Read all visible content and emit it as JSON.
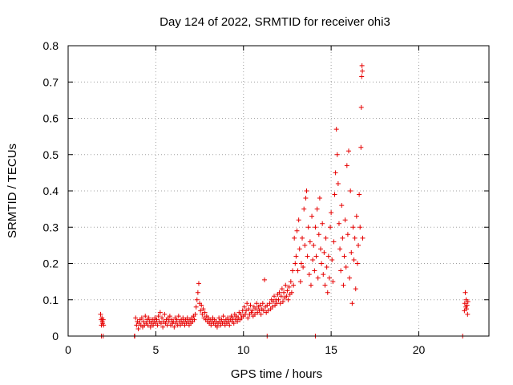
{
  "chart_data": {
    "type": "scatter",
    "title": "Day 124 of 2022, SRMTID for receiver ohi3",
    "xlabel": "GPS time / hours",
    "ylabel": "SRMTID / TECUs",
    "xlim": [
      0,
      24
    ],
    "ylim": [
      0,
      0.8
    ],
    "xticks": [
      0,
      5,
      10,
      15,
      20
    ],
    "yticks": [
      0,
      0.1,
      0.2,
      0.3,
      0.4,
      0.5,
      0.6,
      0.7,
      0.8
    ],
    "grid": true,
    "legend": "none",
    "marker": "+",
    "colors": {
      "points": "#e60000",
      "grid": "#a0a0a0",
      "frame": "#000000"
    },
    "series": [
      {
        "name": "SRMTID",
        "points": [
          [
            1.85,
            0.06
          ],
          [
            1.88,
            0.045
          ],
          [
            1.9,
            0.03
          ],
          [
            1.93,
            0.05
          ],
          [
            1.95,
            0.04
          ],
          [
            1.97,
            0.035
          ],
          [
            2.0,
            0.045
          ],
          [
            2.02,
            0.03
          ],
          [
            1.9,
            0.0
          ],
          [
            2.0,
            0.0
          ],
          [
            3.78,
            0.0
          ],
          [
            3.8,
            0.0
          ],
          [
            3.85,
            0.05
          ],
          [
            3.9,
            0.03
          ],
          [
            3.95,
            0.04
          ],
          [
            4.0,
            0.02
          ],
          [
            4.05,
            0.035
          ],
          [
            4.1,
            0.045
          ],
          [
            4.15,
            0.03
          ],
          [
            4.2,
            0.05
          ],
          [
            4.25,
            0.025
          ],
          [
            4.3,
            0.04
          ],
          [
            4.35,
            0.03
          ],
          [
            4.4,
            0.055
          ],
          [
            4.45,
            0.035
          ],
          [
            4.5,
            0.045
          ],
          [
            4.55,
            0.03
          ],
          [
            4.6,
            0.05
          ],
          [
            4.65,
            0.04
          ],
          [
            4.7,
            0.025
          ],
          [
            4.75,
            0.035
          ],
          [
            4.8,
            0.045
          ],
          [
            4.85,
            0.03
          ],
          [
            4.9,
            0.04
          ],
          [
            4.95,
            0.05
          ],
          [
            5.0,
            0.035
          ],
          [
            5.05,
            0.045
          ],
          [
            5.1,
            0.03
          ],
          [
            5.15,
            0.055
          ],
          [
            5.2,
            0.04
          ],
          [
            5.25,
            0.065
          ],
          [
            5.3,
            0.035
          ],
          [
            5.35,
            0.05
          ],
          [
            5.4,
            0.025
          ],
          [
            5.45,
            0.04
          ],
          [
            5.5,
            0.06
          ],
          [
            5.55,
            0.035
          ],
          [
            5.6,
            0.045
          ],
          [
            5.65,
            0.03
          ],
          [
            5.7,
            0.05
          ],
          [
            5.75,
            0.04
          ],
          [
            5.8,
            0.055
          ],
          [
            5.85,
            0.03
          ],
          [
            5.9,
            0.045
          ],
          [
            5.95,
            0.035
          ],
          [
            6.0,
            0.04
          ],
          [
            6.05,
            0.025
          ],
          [
            6.1,
            0.05
          ],
          [
            6.15,
            0.035
          ],
          [
            6.2,
            0.045
          ],
          [
            6.25,
            0.03
          ],
          [
            6.3,
            0.055
          ],
          [
            6.35,
            0.04
          ],
          [
            6.4,
            0.03
          ],
          [
            6.45,
            0.045
          ],
          [
            6.5,
            0.035
          ],
          [
            6.55,
            0.05
          ],
          [
            6.6,
            0.04
          ],
          [
            6.65,
            0.03
          ],
          [
            6.7,
            0.045
          ],
          [
            6.75,
            0.035
          ],
          [
            6.8,
            0.05
          ],
          [
            6.85,
            0.04
          ],
          [
            6.9,
            0.03
          ],
          [
            6.95,
            0.045
          ],
          [
            7.0,
            0.035
          ],
          [
            7.05,
            0.05
          ],
          [
            7.1,
            0.04
          ],
          [
            7.15,
            0.055
          ],
          [
            7.2,
            0.045
          ],
          [
            7.25,
            0.06
          ],
          [
            7.3,
            0.08
          ],
          [
            7.35,
            0.1
          ],
          [
            7.4,
            0.12
          ],
          [
            7.45,
            0.145
          ],
          [
            7.5,
            0.09
          ],
          [
            7.55,
            0.07
          ],
          [
            7.6,
            0.085
          ],
          [
            7.65,
            0.06
          ],
          [
            7.7,
            0.075
          ],
          [
            7.75,
            0.05
          ],
          [
            7.8,
            0.065
          ],
          [
            7.85,
            0.045
          ],
          [
            7.9,
            0.055
          ],
          [
            7.95,
            0.04
          ],
          [
            8.0,
            0.05
          ],
          [
            8.05,
            0.035
          ],
          [
            8.1,
            0.045
          ],
          [
            8.15,
            0.03
          ],
          [
            8.2,
            0.04
          ],
          [
            8.25,
            0.05
          ],
          [
            8.3,
            0.035
          ],
          [
            8.35,
            0.045
          ],
          [
            8.4,
            0.03
          ],
          [
            8.45,
            0.04
          ],
          [
            8.5,
            0.025
          ],
          [
            8.55,
            0.035
          ],
          [
            8.6,
            0.05
          ],
          [
            8.65,
            0.04
          ],
          [
            8.7,
            0.03
          ],
          [
            8.75,
            0.045
          ],
          [
            8.8,
            0.035
          ],
          [
            8.85,
            0.055
          ],
          [
            8.9,
            0.04
          ],
          [
            8.95,
            0.03
          ],
          [
            9.0,
            0.045
          ],
          [
            9.05,
            0.035
          ],
          [
            9.1,
            0.05
          ],
          [
            9.15,
            0.04
          ],
          [
            9.2,
            0.03
          ],
          [
            9.25,
            0.045
          ],
          [
            9.3,
            0.055
          ],
          [
            9.35,
            0.04
          ],
          [
            9.4,
            0.05
          ],
          [
            9.45,
            0.035
          ],
          [
            9.5,
            0.06
          ],
          [
            9.55,
            0.045
          ],
          [
            9.6,
            0.055
          ],
          [
            9.65,
            0.04
          ],
          [
            9.7,
            0.05
          ],
          [
            9.75,
            0.065
          ],
          [
            9.8,
            0.045
          ],
          [
            9.85,
            0.06
          ],
          [
            9.9,
            0.05
          ],
          [
            9.95,
            0.07
          ],
          [
            10.0,
            0.055
          ],
          [
            10.05,
            0.08
          ],
          [
            10.1,
            0.06
          ],
          [
            10.15,
            0.07
          ],
          [
            10.2,
            0.09
          ],
          [
            10.25,
            0.05
          ],
          [
            10.3,
            0.075
          ],
          [
            10.35,
            0.06
          ],
          [
            10.4,
            0.085
          ],
          [
            10.45,
            0.065
          ],
          [
            10.5,
            0.07
          ],
          [
            10.55,
            0.055
          ],
          [
            10.6,
            0.08
          ],
          [
            10.65,
            0.06
          ],
          [
            10.7,
            0.075
          ],
          [
            10.75,
            0.09
          ],
          [
            10.8,
            0.065
          ],
          [
            10.85,
            0.08
          ],
          [
            10.9,
            0.07
          ],
          [
            10.95,
            0.085
          ],
          [
            11.0,
            0.06
          ],
          [
            11.05,
            0.075
          ],
          [
            11.1,
            0.09
          ],
          [
            11.15,
            0.07
          ],
          [
            11.2,
            0.155
          ],
          [
            11.25,
            0.08
          ],
          [
            11.3,
            0.065
          ],
          [
            11.35,
            0.085
          ],
          [
            11.4,
            0.07
          ],
          [
            11.5,
            0.09
          ],
          [
            11.55,
            0.075
          ],
          [
            11.6,
            0.1
          ],
          [
            11.65,
            0.08
          ],
          [
            11.7,
            0.095
          ],
          [
            11.75,
            0.11
          ],
          [
            11.8,
            0.085
          ],
          [
            11.85,
            0.1
          ],
          [
            11.9,
            0.09
          ],
          [
            11.95,
            0.115
          ],
          [
            12.0,
            0.1
          ],
          [
            12.05,
            0.12
          ],
          [
            12.1,
            0.09
          ],
          [
            12.15,
            0.11
          ],
          [
            12.2,
            0.13
          ],
          [
            12.25,
            0.095
          ],
          [
            12.3,
            0.12
          ],
          [
            12.35,
            0.105
          ],
          [
            12.4,
            0.14
          ],
          [
            12.45,
            0.11
          ],
          [
            12.5,
            0.125
          ],
          [
            12.55,
            0.1
          ],
          [
            12.6,
            0.135
          ],
          [
            12.65,
            0.115
          ],
          [
            12.7,
            0.15
          ],
          [
            12.75,
            0.12
          ],
          [
            12.8,
            0.18
          ],
          [
            12.85,
            0.14
          ],
          [
            12.9,
            0.27
          ],
          [
            12.95,
            0.2
          ],
          [
            13.0,
            0.22
          ],
          [
            13.05,
            0.29
          ],
          [
            13.1,
            0.18
          ],
          [
            13.15,
            0.32
          ],
          [
            13.2,
            0.24
          ],
          [
            13.25,
            0.15
          ],
          [
            13.3,
            0.2
          ],
          [
            13.35,
            0.27
          ],
          [
            13.4,
            0.19
          ],
          [
            13.45,
            0.35
          ],
          [
            13.5,
            0.25
          ],
          [
            13.55,
            0.38
          ],
          [
            13.6,
            0.4
          ],
          [
            13.65,
            0.22
          ],
          [
            13.7,
            0.3
          ],
          [
            13.75,
            0.17
          ],
          [
            13.8,
            0.26
          ],
          [
            13.85,
            0.14
          ],
          [
            13.9,
            0.33
          ],
          [
            13.95,
            0.21
          ],
          [
            14.0,
            0.25
          ],
          [
            14.05,
            0.18
          ],
          [
            14.1,
            0.3
          ],
          [
            14.15,
            0.22
          ],
          [
            14.2,
            0.35
          ],
          [
            14.25,
            0.16
          ],
          [
            14.3,
            0.28
          ],
          [
            14.35,
            0.38
          ],
          [
            14.4,
            0.24
          ],
          [
            14.45,
            0.2
          ],
          [
            14.5,
            0.31
          ],
          [
            14.55,
            0.17
          ],
          [
            14.6,
            0.23
          ],
          [
            14.65,
            0.14
          ],
          [
            14.7,
            0.27
          ],
          [
            14.75,
            0.19
          ],
          [
            14.8,
            0.12
          ],
          [
            14.85,
            0.22
          ],
          [
            14.9,
            0.16
          ],
          [
            14.95,
            0.3
          ],
          [
            15.0,
            0.34
          ],
          [
            15.05,
            0.21
          ],
          [
            15.1,
            0.15
          ],
          [
            15.15,
            0.26
          ],
          [
            15.2,
            0.39
          ],
          [
            15.25,
            0.45
          ],
          [
            15.3,
            0.57
          ],
          [
            15.35,
            0.5
          ],
          [
            15.4,
            0.42
          ],
          [
            15.45,
            0.31
          ],
          [
            15.5,
            0.24
          ],
          [
            15.55,
            0.18
          ],
          [
            15.6,
            0.36
          ],
          [
            15.65,
            0.27
          ],
          [
            15.7,
            0.14
          ],
          [
            15.75,
            0.22
          ],
          [
            15.8,
            0.32
          ],
          [
            15.85,
            0.19
          ],
          [
            15.9,
            0.47
          ],
          [
            15.95,
            0.28
          ],
          [
            16.0,
            0.51
          ],
          [
            16.05,
            0.16
          ],
          [
            16.1,
            0.4
          ],
          [
            16.15,
            0.23
          ],
          [
            16.2,
            0.09
          ],
          [
            16.25,
            0.3
          ],
          [
            16.3,
            0.21
          ],
          [
            16.35,
            0.27
          ],
          [
            16.4,
            0.13
          ],
          [
            16.45,
            0.33
          ],
          [
            16.5,
            0.2
          ],
          [
            16.55,
            0.25
          ],
          [
            16.6,
            0.39
          ],
          [
            16.65,
            0.3
          ],
          [
            16.7,
            0.52
          ],
          [
            16.72,
            0.63
          ],
          [
            16.74,
            0.715
          ],
          [
            16.76,
            0.745
          ],
          [
            16.78,
            0.73
          ],
          [
            16.8,
            0.27
          ],
          [
            14.1,
            0.0
          ],
          [
            11.35,
            0.0
          ],
          [
            22.5,
            0.0
          ],
          [
            22.6,
            0.07
          ],
          [
            22.62,
            0.09
          ],
          [
            22.65,
            0.12
          ],
          [
            22.68,
            0.08
          ],
          [
            22.7,
            0.1
          ],
          [
            22.72,
            0.075
          ],
          [
            22.75,
            0.085
          ],
          [
            22.78,
            0.06
          ],
          [
            22.8,
            0.095
          ]
        ]
      }
    ]
  }
}
